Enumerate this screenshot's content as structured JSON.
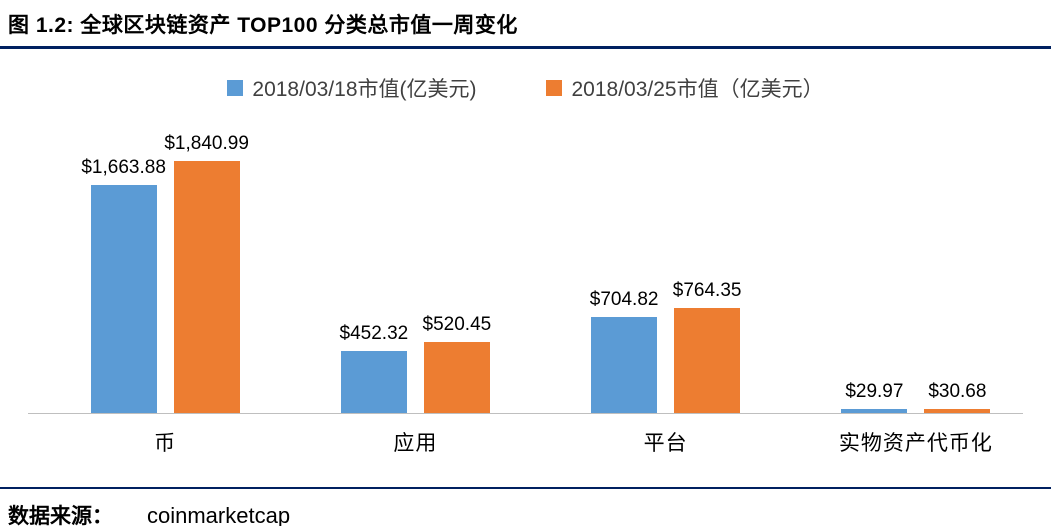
{
  "header": {
    "title": "图 1.2: 全球区块链资产 TOP100 分类总市值一周变化"
  },
  "footer": {
    "label": "数据来源：",
    "source": "coinmarketcap"
  },
  "colors": {
    "rule": "#002060",
    "axis": "#BFBFBF"
  },
  "chart_data": {
    "type": "bar",
    "title": "图 1.2: 全球区块链资产 TOP100 分类总市值一周变化",
    "categories": [
      "币",
      "应用",
      "平台",
      "实物资产代币化"
    ],
    "series": [
      {
        "name": "2018/03/18市值(亿美元)",
        "color": "#5B9BD5",
        "values": [
          1663.88,
          452.32,
          704.82,
          29.97
        ],
        "labels": [
          "$1,663.88",
          "$452.32",
          "$704.82",
          "$29.97"
        ]
      },
      {
        "name": "2018/03/25市值（亿美元）",
        "color": "#ED7D31",
        "values": [
          1840.99,
          520.45,
          764.35,
          30.68
        ],
        "labels": [
          "$1,840.99",
          "$520.45",
          "$764.35",
          "$30.68"
        ]
      }
    ],
    "xlabel": "",
    "ylabel": "",
    "ylim": [
      0,
      1900
    ],
    "grid": false,
    "legend_position": "top"
  }
}
